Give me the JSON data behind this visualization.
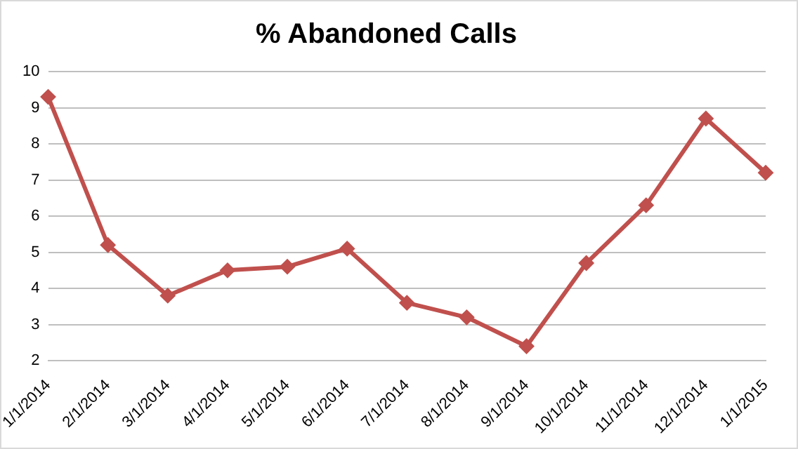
{
  "chart_data": {
    "type": "line",
    "title": "% Abandoned Calls",
    "categories": [
      "1/1/2014",
      "2/1/2014",
      "3/1/2014",
      "4/1/2014",
      "5/1/2014",
      "6/1/2014",
      "7/1/2014",
      "8/1/2014",
      "9/1/2014",
      "10/1/2014",
      "11/1/2014",
      "12/1/2014",
      "1/1/2015"
    ],
    "series": [
      {
        "color": "#c0504d",
        "values": [
          9.3,
          5.2,
          3.8,
          4.5,
          4.6,
          5.1,
          3.6,
          3.2,
          2.4,
          4.7,
          6.3,
          8.7,
          7.2
        ]
      }
    ],
    "ylim": [
      2,
      10
    ],
    "yticks": [
      2,
      3,
      4,
      5,
      6,
      7,
      8,
      9,
      10
    ],
    "grid": "y",
    "legend": false,
    "marker": "diamond",
    "line_style": "solid"
  }
}
